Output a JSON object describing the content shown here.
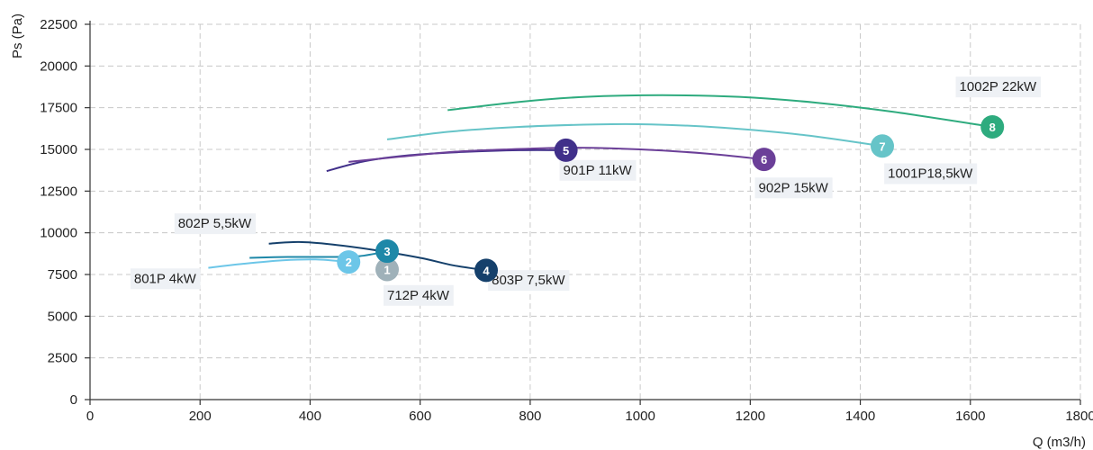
{
  "chart_data": {
    "type": "line",
    "title": "",
    "xlabel": "Q (m3/h)",
    "ylabel": "Ps (Pa)",
    "xlim": [
      0,
      1800
    ],
    "ylim": [
      0,
      22500
    ],
    "xticks": [
      0,
      200,
      400,
      600,
      800,
      1000,
      1200,
      1400,
      1600,
      1800
    ],
    "yticks": [
      0,
      2500,
      5000,
      7500,
      10000,
      12500,
      15000,
      17500,
      20000,
      22500
    ],
    "grid": true,
    "series": [
      {
        "name": "712P 4kW",
        "marker": "1",
        "color": "#9fb1b9",
        "points": [],
        "marker_point": [
          540,
          7800
        ],
        "label_at": [
          540,
          6000
        ]
      },
      {
        "name": "801P 4kW",
        "marker": "2",
        "color": "#6cc6e8",
        "points": [
          [
            215,
            7900
          ],
          [
            280,
            8150
          ],
          [
            350,
            8350
          ],
          [
            410,
            8400
          ],
          [
            470,
            8250
          ]
        ],
        "marker_point": [
          470,
          8250
        ],
        "label_at": [
          80,
          7000
        ]
      },
      {
        "name": "802P 5,5kW",
        "marker": "3",
        "color": "#1e88a8",
        "points": [
          [
            290,
            8500
          ],
          [
            360,
            8550
          ],
          [
            430,
            8550
          ],
          [
            490,
            8600
          ],
          [
            540,
            8900
          ]
        ],
        "marker_point": [
          540,
          8900
        ],
        "label_at": [
          160,
          10300
        ]
      },
      {
        "name": "803P 7,5kW",
        "marker": "4",
        "color": "#15406b",
        "points": [
          [
            325,
            9350
          ],
          [
            380,
            9450
          ],
          [
            440,
            9300
          ],
          [
            520,
            8950
          ],
          [
            600,
            8500
          ],
          [
            660,
            8050
          ],
          [
            720,
            7750
          ]
        ],
        "marker_point": [
          720,
          7750
        ],
        "label_at": [
          730,
          6900
        ]
      },
      {
        "name": "901P 11kW",
        "marker": "5",
        "color": "#41308a",
        "points": [
          [
            430,
            13700
          ],
          [
            500,
            14300
          ],
          [
            580,
            14650
          ],
          [
            680,
            14850
          ],
          [
            780,
            14950
          ],
          [
            865,
            14950
          ]
        ],
        "marker_point": [
          865,
          14950
        ],
        "label_at": [
          860,
          13500
        ]
      },
      {
        "name": "902P 15kW",
        "marker": "6",
        "color": "#6b3f98",
        "points": [
          [
            470,
            14250
          ],
          [
            560,
            14550
          ],
          [
            660,
            14850
          ],
          [
            760,
            15000
          ],
          [
            880,
            15100
          ],
          [
            1000,
            15000
          ],
          [
            1120,
            14750
          ],
          [
            1225,
            14400
          ]
        ],
        "marker_point": [
          1225,
          14400
        ],
        "label_at": [
          1215,
          12450
        ]
      },
      {
        "name": "1001P18,5kW",
        "marker": "7",
        "color": "#66c4c8",
        "points": [
          [
            540,
            15600
          ],
          [
            650,
            16050
          ],
          [
            780,
            16350
          ],
          [
            920,
            16500
          ],
          [
            1020,
            16500
          ],
          [
            1150,
            16300
          ],
          [
            1300,
            15850
          ],
          [
            1440,
            15200
          ]
        ],
        "marker_point": [
          1440,
          15200
        ],
        "label_at": [
          1450,
          13300
        ]
      },
      {
        "name": "1002P 22kW",
        "marker": "8",
        "color": "#2eab7e",
        "points": [
          [
            650,
            17350
          ],
          [
            780,
            17850
          ],
          [
            900,
            18150
          ],
          [
            1040,
            18250
          ],
          [
            1180,
            18150
          ],
          [
            1320,
            17800
          ],
          [
            1460,
            17250
          ],
          [
            1640,
            16350
          ]
        ],
        "marker_point": [
          1640,
          16350
        ],
        "label_at": [
          1580,
          18500
        ]
      }
    ]
  }
}
